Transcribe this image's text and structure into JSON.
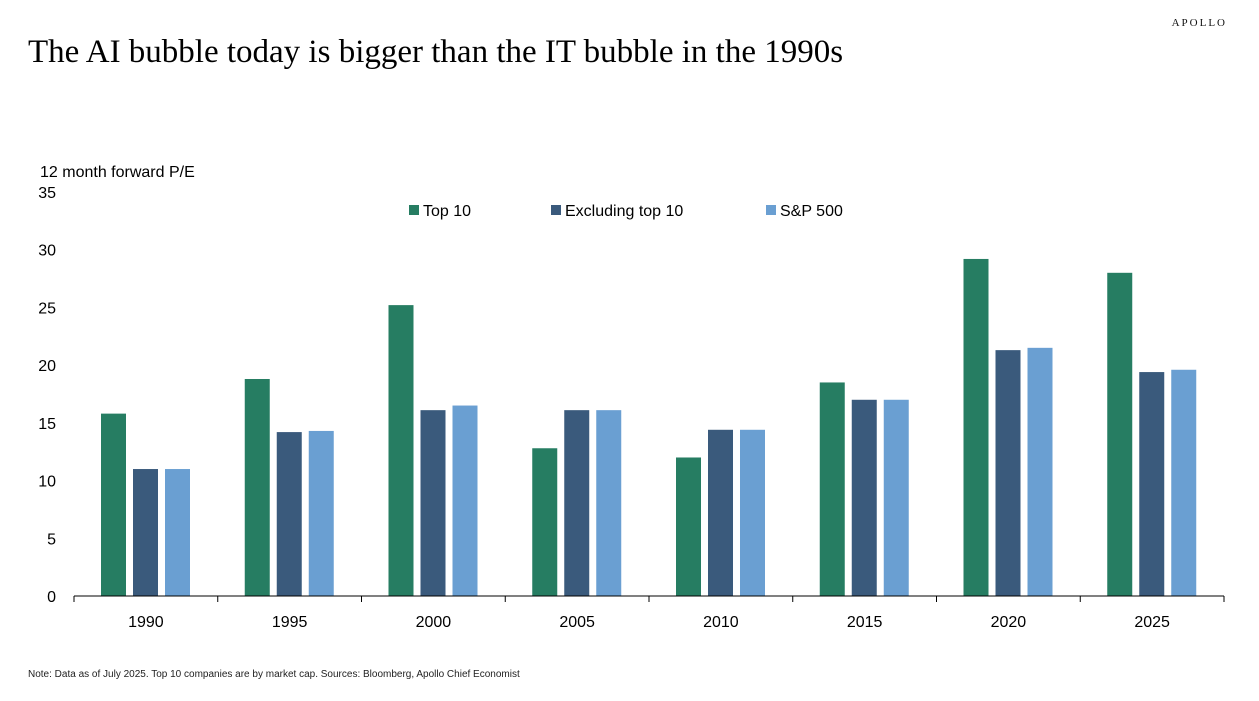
{
  "header": {
    "brand": "APOLLO",
    "title": "The AI bubble today is bigger than the IT bubble in the 1990s"
  },
  "footer": {
    "note": "Note: Data as of July 2025. Top 10 companies are by market cap. Sources: Bloomberg, Apollo Chief Economist"
  },
  "chart_data": {
    "type": "bar",
    "title": "The AI bubble today is bigger than the IT bubble in the 1990s",
    "ylabel": "12 month forward P/E",
    "xlabel": "",
    "categories": [
      "1990",
      "1995",
      "2000",
      "2005",
      "2010",
      "2015",
      "2020",
      "2025"
    ],
    "series": [
      {
        "name": "Top 10",
        "color": "#267d62",
        "values": [
          15.8,
          18.8,
          25.2,
          12.8,
          12.0,
          18.5,
          29.2,
          28.0
        ]
      },
      {
        "name": "Excluding top 10",
        "color": "#3a5a7c",
        "values": [
          11.0,
          14.2,
          16.1,
          16.1,
          14.4,
          17.0,
          21.3,
          19.4
        ]
      },
      {
        "name": "S&P 500",
        "color": "#6a9fd2",
        "values": [
          11.0,
          14.3,
          16.5,
          16.1,
          14.4,
          17.0,
          21.5,
          19.6
        ]
      }
    ],
    "ylim": [
      0,
      35
    ],
    "yticks": [
      "0",
      "5",
      "10",
      "15",
      "20",
      "25",
      "30",
      "35"
    ],
    "grid": false,
    "legend": "top-center"
  }
}
